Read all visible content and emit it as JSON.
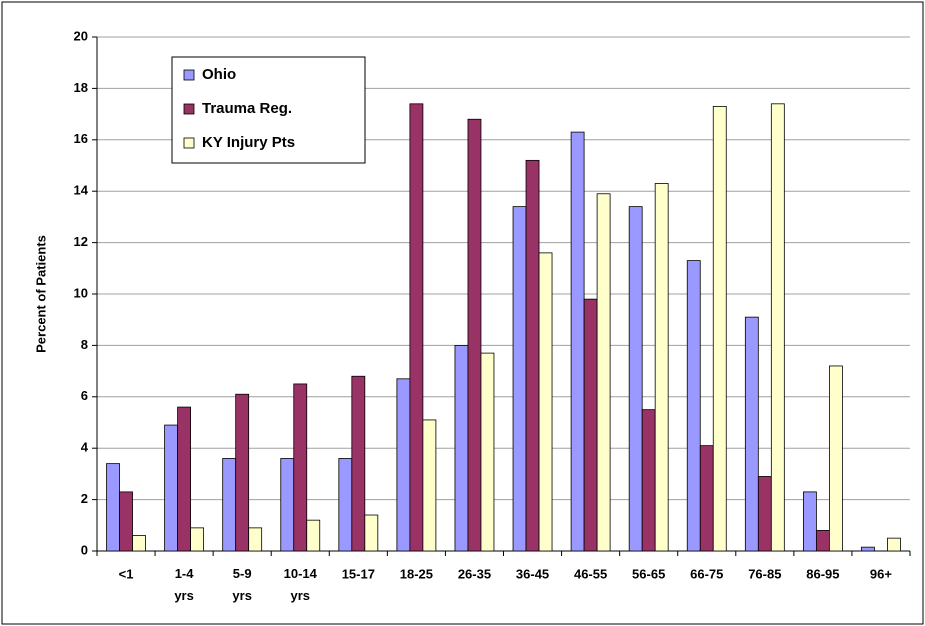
{
  "chart_data": {
    "type": "bar",
    "y_label": "Percent of Patients",
    "categories": [
      "<1",
      "1-4 yrs",
      "5-9 yrs",
      "10-14 yrs",
      "15-17",
      "18-25",
      "26-35",
      "36-45",
      "46-55",
      "56-65",
      "66-75",
      "76-85",
      "86-95",
      "96+"
    ],
    "series": [
      {
        "name": "Ohio",
        "color": "#9999ff",
        "values": [
          3.4,
          4.9,
          3.6,
          3.6,
          3.6,
          6.7,
          8.0,
          13.4,
          16.3,
          13.4,
          11.3,
          9.1,
          2.3,
          0.15
        ]
      },
      {
        "name": "Trauma Reg.",
        "color": "#993366",
        "values": [
          2.3,
          5.6,
          6.1,
          6.5,
          6.8,
          17.4,
          16.8,
          15.2,
          9.8,
          5.5,
          4.1,
          2.9,
          0.8,
          0
        ]
      },
      {
        "name": "KY Injury Pts",
        "color": "#ffffcc",
        "values": [
          0.6,
          0.9,
          0.9,
          1.2,
          1.4,
          5.1,
          7.7,
          11.6,
          13.9,
          14.3,
          17.3,
          17.4,
          7.2,
          0.5
        ]
      }
    ],
    "ylim": [
      0,
      20
    ],
    "yticks": [
      0,
      2,
      4,
      6,
      8,
      10,
      12,
      14,
      16,
      18,
      20
    ],
    "grid": true,
    "legend": "top-left"
  }
}
